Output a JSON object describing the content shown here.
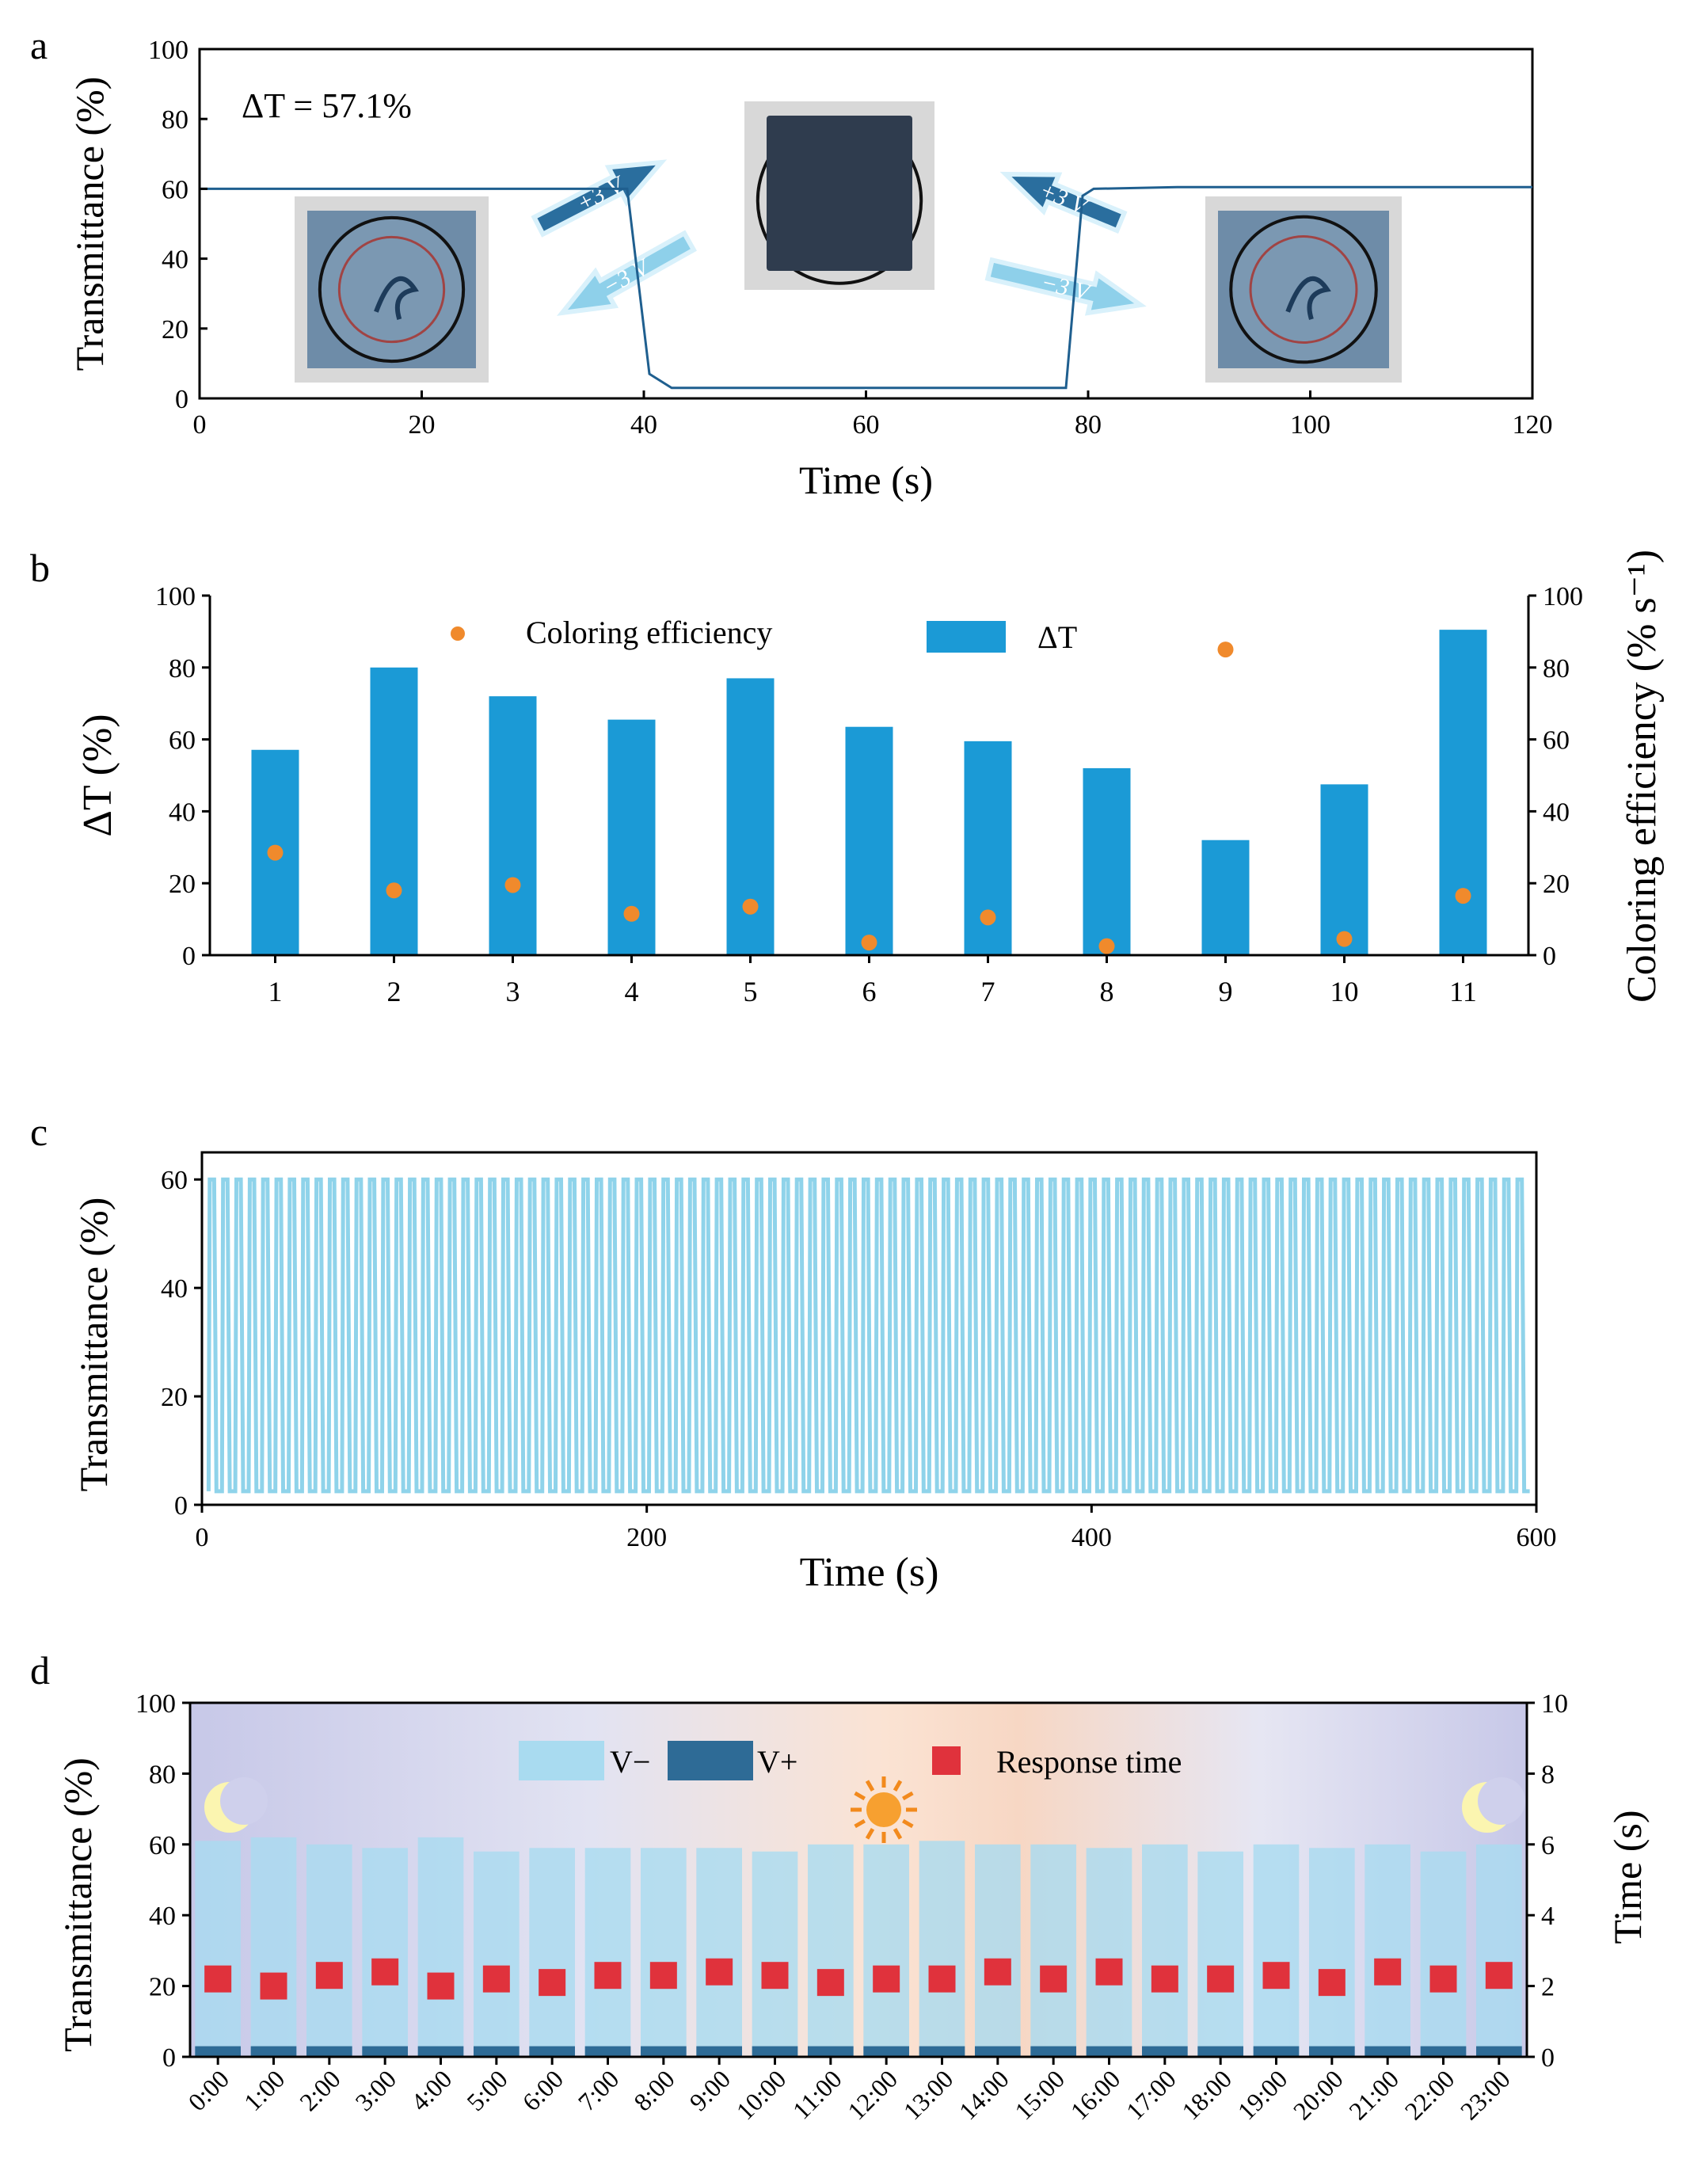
{
  "panels": {
    "a": {
      "label": "a",
      "annotation": "ΔT = 57.1%",
      "arrow_labels": [
        "+3 V",
        "−3 V",
        "+3 V",
        "−3 V"
      ],
      "chart_data": {
        "type": "line",
        "xlabel": "Time (s)",
        "ylabel": "Transmittance (%)",
        "xlim": [
          0,
          120
        ],
        "ylim": [
          0,
          100
        ],
        "xticks": [
          0,
          20,
          40,
          60,
          80,
          100,
          120
        ],
        "yticks": [
          0,
          20,
          40,
          60,
          80,
          100
        ],
        "line_color": "#1f5f8f",
        "series": [
          {
            "x": [
              0,
              38.5,
              40.5,
              42.5,
              78,
              79.5,
              80.5,
              88,
              120
            ],
            "y": [
              60,
              60,
              7,
              3,
              3,
              58,
              60,
              60.5,
              60.5
            ]
          }
        ]
      }
    },
    "b": {
      "label": "b",
      "chart_data": {
        "type": "bar",
        "categories": [
          "1",
          "2",
          "3",
          "4",
          "5",
          "6",
          "7",
          "8",
          "9",
          "10",
          "11"
        ],
        "series": [
          {
            "name": "ΔT",
            "axis": "left",
            "color": "#1b9ad6",
            "values": [
              57.1,
              80,
              72,
              65.5,
              77,
              63.5,
              59.5,
              52,
              32,
              47.5,
              90.5
            ]
          },
          {
            "name": "Coloring efficiency",
            "axis": "right",
            "type": "scatter",
            "color": "#f08a2c",
            "values": [
              28.5,
              18,
              19.5,
              11.5,
              13.5,
              3.5,
              10.5,
              2.5,
              85,
              4.5,
              16.5
            ]
          }
        ],
        "ylabel": "ΔT (%)",
        "ylabel_right": "Coloring efficiency (% s⁻¹)",
        "ylim": [
          0,
          100
        ],
        "ylim_right": [
          0,
          100
        ],
        "yticks": [
          0,
          20,
          40,
          60,
          80,
          100
        ],
        "legend_position": "top"
      }
    },
    "c": {
      "label": "c",
      "chart_data": {
        "type": "line",
        "xlabel": "Time (s)",
        "ylabel": "Transmittance (%)",
        "xlim": [
          0,
          600
        ],
        "ylim": [
          0,
          65
        ],
        "xticks": [
          0,
          200,
          400,
          600
        ],
        "yticks": [
          0,
          20,
          40,
          60
        ],
        "line_color": "#8fd3ea",
        "cycle_period_s": 6,
        "t_max": 60,
        "t_min": 2.5
      }
    },
    "d": {
      "label": "d",
      "chart_data": {
        "type": "bar",
        "categories": [
          "0:00",
          "1:00",
          "2:00",
          "3:00",
          "4:00",
          "5:00",
          "6:00",
          "7:00",
          "8:00",
          "9:00",
          "10:00",
          "11:00",
          "12:00",
          "13:00",
          "14:00",
          "15:00",
          "16:00",
          "17:00",
          "18:00",
          "19:00",
          "20:00",
          "21:00",
          "22:00",
          "23:00"
        ],
        "series": [
          {
            "name": "V−",
            "axis": "left",
            "color": "#a9dbf0",
            "values": [
              61,
              62,
              60,
              59,
              62,
              58,
              59,
              59,
              59,
              59,
              58,
              60,
              60,
              61,
              60,
              60,
              59,
              60,
              58,
              60,
              59,
              60,
              58,
              60
            ]
          },
          {
            "name": "V+",
            "axis": "left",
            "color": "#2e6b96",
            "values": [
              3,
              3,
              3,
              3,
              3,
              3,
              3,
              3,
              3,
              3,
              3,
              3,
              3,
              3,
              3,
              3,
              3,
              3,
              3,
              3,
              3,
              3,
              3,
              3
            ]
          },
          {
            "name": "Response time",
            "axis": "right",
            "type": "scatter",
            "color": "#e0323c",
            "values": [
              2.2,
              2.0,
              2.3,
              2.4,
              2.0,
              2.2,
              2.1,
              2.3,
              2.3,
              2.4,
              2.3,
              2.1,
              2.2,
              2.2,
              2.4,
              2.2,
              2.4,
              2.2,
              2.2,
              2.3,
              2.1,
              2.4,
              2.2,
              2.3
            ]
          }
        ],
        "ylabel": "Transmittance (%)",
        "ylabel_right": "Time (s)",
        "ylim": [
          0,
          100
        ],
        "ylim_right": [
          0,
          10
        ],
        "yticks": [
          0,
          20,
          40,
          60,
          80,
          100
        ],
        "yticks_right": [
          0,
          2,
          4,
          6,
          8,
          10
        ],
        "legend_position": "top"
      }
    }
  },
  "icons": [
    "moon-icon",
    "sun-icon",
    "moon-icon"
  ]
}
